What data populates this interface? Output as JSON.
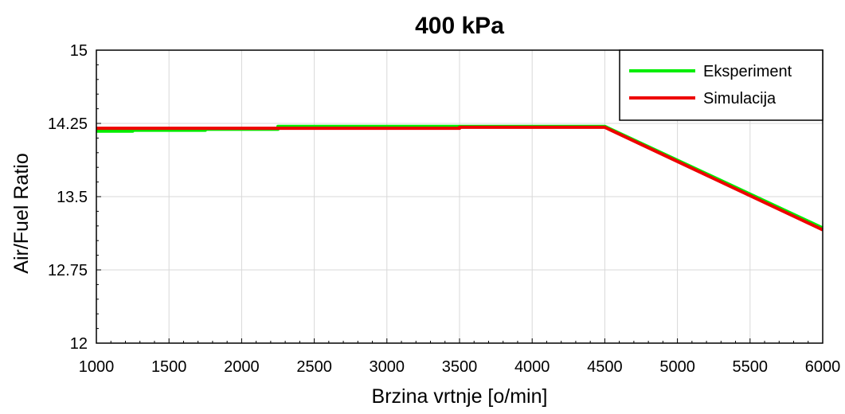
{
  "chart_data": {
    "type": "line",
    "title": "400 kPa",
    "xlabel": "Brzina vrtnje [o/min]",
    "ylabel": "Air/Fuel Ratio",
    "xlim": [
      1000,
      6000
    ],
    "ylim": [
      12,
      15
    ],
    "xticks": [
      "1000",
      "1500",
      "2000",
      "2500",
      "3000",
      "3500",
      "4000",
      "4500",
      "5000",
      "5500",
      "6000"
    ],
    "yticks": [
      "12",
      "12.75",
      "13.5",
      "14.25",
      "15"
    ],
    "grid": true,
    "legend_position": "top-right",
    "series": [
      {
        "name": "Eksperiment",
        "color": "#00ee00",
        "x": [
          1000,
          1250,
          1250,
          1750,
          1750,
          2250,
          2250,
          4500,
          6000
        ],
        "y": [
          14.17,
          14.17,
          14.18,
          14.18,
          14.19,
          14.19,
          14.22,
          14.22,
          13.18
        ]
      },
      {
        "name": "Simulacija",
        "color": "#ee0000",
        "x": [
          1000,
          3500,
          3500,
          4500,
          6000
        ],
        "y": [
          14.2,
          14.2,
          14.21,
          14.21,
          13.16
        ]
      }
    ]
  }
}
